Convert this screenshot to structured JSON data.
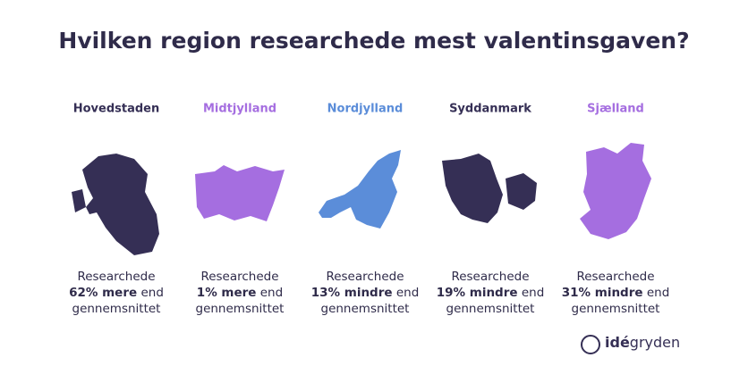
{
  "title": "Hvilken region researchede mest valentinsgaven?",
  "regions": [
    {
      "name": "Hovedstaden",
      "color": "#352f55",
      "text_before": "Researchede",
      "highlight": "62% mere",
      "text_after": "end",
      "text_end": "gennemsnittet"
    },
    {
      "name": "Midtjylland",
      "color": "#a56ee0",
      "text_before": "Researchede",
      "highlight": "1% mere",
      "text_after": "end",
      "text_end": "gennemsnittet"
    },
    {
      "name": "Nordjylland",
      "color": "#5b8dd9",
      "text_before": "Researchede",
      "highlight": "13% mindre",
      "text_after": "end",
      "text_end": "gennemsnittet"
    },
    {
      "name": "Syddanmark",
      "color": "#352f55",
      "text_before": "Researchede",
      "highlight": "19% mindre",
      "text_after": "end",
      "text_end": "gennemsnittet"
    },
    {
      "name": "Sjælland",
      "color": "#a56ee0",
      "text_before": "Researchede",
      "highlight": "31% mindre",
      "text_after": "end",
      "text_end": "gennemsnittet"
    }
  ],
  "logo": {
    "brand_bold": "idé",
    "brand_light": "gryden"
  }
}
